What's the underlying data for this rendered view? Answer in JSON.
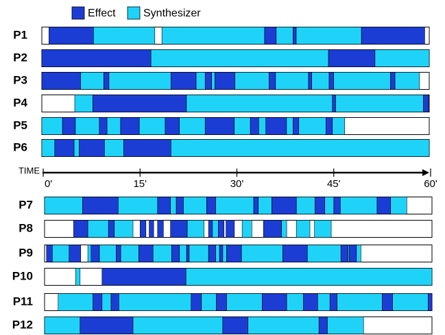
{
  "chart_data": {
    "type": "timeline",
    "series": [
      {
        "name": "Effect",
        "color": "#1c3dd4"
      },
      {
        "name": "Synthesizer",
        "color": "#1fd3f8"
      }
    ],
    "x_label": "TIME",
    "xlim": [
      0,
      60
    ],
    "xticks": [
      {
        "value": 0,
        "label": "0'"
      },
      {
        "value": 15,
        "label": "15'"
      },
      {
        "value": 30,
        "label": "30'"
      },
      {
        "value": 45,
        "label": "45'"
      },
      {
        "value": 60,
        "label": "60'"
      }
    ],
    "rows": [
      {
        "label": "P1",
        "segments": [
          [
            1.1,
            8.0,
            0
          ],
          [
            8.0,
            17.5,
            1
          ],
          [
            18.6,
            34.5,
            1
          ],
          [
            34.5,
            36.3,
            0
          ],
          [
            36.3,
            38.9,
            1
          ],
          [
            38.9,
            39.4,
            0
          ],
          [
            39.4,
            49.5,
            1
          ],
          [
            49.5,
            59.3,
            0
          ]
        ]
      },
      {
        "label": "P2",
        "segments": [
          [
            0,
            16.9,
            0
          ],
          [
            16.9,
            44.4,
            1
          ],
          [
            44.4,
            51.6,
            0
          ],
          [
            51.6,
            60,
            1
          ]
        ]
      },
      {
        "label": "P3",
        "segments": [
          [
            0,
            6.0,
            0
          ],
          [
            6.0,
            9.6,
            1
          ],
          [
            9.6,
            10.4,
            0
          ],
          [
            10.4,
            20.0,
            1
          ],
          [
            20.0,
            23.9,
            0
          ],
          [
            23.9,
            25.3,
            1
          ],
          [
            25.3,
            26.3,
            0
          ],
          [
            26.3,
            26.8,
            1
          ],
          [
            26.8,
            29.9,
            0
          ],
          [
            29.9,
            35.2,
            1
          ],
          [
            35.2,
            36.2,
            0
          ],
          [
            36.2,
            41.3,
            1
          ],
          [
            41.3,
            41.8,
            0
          ],
          [
            41.8,
            44.5,
            1
          ],
          [
            44.5,
            45.2,
            0
          ],
          [
            45.2,
            54.0,
            1
          ],
          [
            54.0,
            54.7,
            0
          ],
          [
            54.7,
            58.5,
            1
          ]
        ]
      },
      {
        "label": "P4",
        "segments": [
          [
            5.1,
            7.9,
            1
          ],
          [
            7.9,
            22.4,
            0
          ],
          [
            22.4,
            45.0,
            1
          ],
          [
            45.0,
            45.5,
            0
          ],
          [
            45.5,
            59.1,
            1
          ],
          [
            59.1,
            59.9,
            0
          ]
        ]
      },
      {
        "label": "P5",
        "segments": [
          [
            0,
            3.2,
            1
          ],
          [
            3.2,
            5.2,
            0
          ],
          [
            5.2,
            8.9,
            1
          ],
          [
            8.9,
            10.1,
            0
          ],
          [
            10.1,
            12.2,
            1
          ],
          [
            12.2,
            15.1,
            0
          ],
          [
            15.1,
            19.1,
            1
          ],
          [
            19.1,
            21.3,
            0
          ],
          [
            21.3,
            25.3,
            1
          ],
          [
            25.3,
            29.8,
            0
          ],
          [
            29.8,
            32.3,
            1
          ],
          [
            32.3,
            33.6,
            0
          ],
          [
            33.6,
            34.7,
            1
          ],
          [
            34.7,
            37.9,
            0
          ],
          [
            37.9,
            38.9,
            1
          ],
          [
            38.9,
            39.8,
            0
          ],
          [
            39.8,
            44.0,
            1
          ],
          [
            44.0,
            45.0,
            0
          ],
          [
            45.0,
            46.9,
            1
          ]
        ]
      },
      {
        "label": "P6",
        "segments": [
          [
            0,
            2.0,
            1
          ],
          [
            2.0,
            5.0,
            0
          ],
          [
            5.0,
            5.8,
            1
          ],
          [
            5.8,
            9.7,
            0
          ],
          [
            9.7,
            12.7,
            1
          ],
          [
            12.7,
            20.0,
            0
          ],
          [
            20.0,
            60,
            1
          ]
        ]
      },
      {
        "label": "P7",
        "segments": [
          [
            0,
            5.9,
            1
          ],
          [
            5.9,
            11.4,
            0
          ],
          [
            11.4,
            17.5,
            1
          ],
          [
            17.5,
            19.5,
            0
          ],
          [
            19.5,
            20.4,
            1
          ],
          [
            20.4,
            21.5,
            0
          ],
          [
            21.5,
            25.1,
            1
          ],
          [
            25.1,
            26.5,
            0
          ],
          [
            26.5,
            32.4,
            1
          ],
          [
            32.4,
            33.1,
            0
          ],
          [
            33.1,
            35.2,
            1
          ],
          [
            35.2,
            39.0,
            0
          ],
          [
            39.0,
            41.9,
            1
          ],
          [
            41.9,
            43.4,
            0
          ],
          [
            43.4,
            44.8,
            1
          ],
          [
            44.8,
            45.8,
            0
          ],
          [
            45.8,
            51.5,
            1
          ],
          [
            51.5,
            53.6,
            0
          ],
          [
            53.6,
            56.1,
            1
          ]
        ]
      },
      {
        "label": "P8",
        "segments": [
          [
            4.5,
            6.7,
            0
          ],
          [
            6.7,
            9.9,
            1
          ],
          [
            9.9,
            10.8,
            0
          ],
          [
            10.8,
            13.7,
            1
          ],
          [
            14.8,
            15.7,
            0
          ],
          [
            16.2,
            16.9,
            0
          ],
          [
            17.5,
            18.4,
            0
          ],
          [
            19.5,
            22.1,
            0
          ],
          [
            22.1,
            24.7,
            1
          ],
          [
            25.4,
            26.0,
            0
          ],
          [
            26.0,
            26.9,
            1
          ],
          [
            26.9,
            27.8,
            0
          ],
          [
            28.1,
            29.4,
            0
          ],
          [
            30.6,
            32.1,
            1
          ],
          [
            33.9,
            36.7,
            0
          ],
          [
            36.7,
            37.5,
            1
          ],
          [
            39.0,
            41.1,
            1
          ],
          [
            41.8,
            44.4,
            1
          ]
        ]
      },
      {
        "label": "P9",
        "segments": [
          [
            0.3,
            1.2,
            0
          ],
          [
            1.2,
            3.8,
            1
          ],
          [
            3.8,
            5.6,
            0
          ],
          [
            6.7,
            7.2,
            1
          ],
          [
            7.2,
            8.5,
            0
          ],
          [
            8.5,
            11.1,
            1
          ],
          [
            11.1,
            11.8,
            0
          ],
          [
            11.8,
            14.6,
            1
          ],
          [
            14.6,
            16.8,
            0
          ],
          [
            16.8,
            19.7,
            1
          ],
          [
            19.7,
            20.9,
            0
          ],
          [
            20.9,
            22.0,
            1
          ],
          [
            22.0,
            22.4,
            0
          ],
          [
            22.4,
            25.4,
            1
          ],
          [
            25.4,
            26.5,
            0
          ],
          [
            26.5,
            27.1,
            1
          ],
          [
            27.1,
            27.6,
            0
          ],
          [
            27.6,
            28.2,
            1
          ],
          [
            28.2,
            30.5,
            0
          ],
          [
            30.5,
            36.9,
            1
          ],
          [
            36.9,
            40.7,
            0
          ],
          [
            40.7,
            45.9,
            1
          ],
          [
            45.9,
            47.0,
            0
          ],
          [
            47.0,
            47.2,
            1
          ],
          [
            47.2,
            48.3,
            0
          ],
          [
            48.3,
            49.0,
            1
          ]
        ]
      },
      {
        "label": "P10",
        "segments": [
          [
            4.8,
            5.5,
            1
          ],
          [
            8.9,
            21.9,
            0
          ],
          [
            21.9,
            60,
            1
          ]
        ]
      },
      {
        "label": "P11",
        "segments": [
          [
            2.1,
            7.5,
            1
          ],
          [
            7.5,
            8.9,
            0
          ],
          [
            8.9,
            10.3,
            1
          ],
          [
            10.3,
            11.5,
            0
          ],
          [
            11.5,
            22.7,
            1
          ],
          [
            22.7,
            24.3,
            0
          ],
          [
            24.3,
            26.6,
            1
          ],
          [
            26.6,
            28.2,
            0
          ],
          [
            28.2,
            33.7,
            1
          ],
          [
            33.7,
            37.5,
            0
          ],
          [
            37.5,
            40.1,
            1
          ],
          [
            40.1,
            42.3,
            0
          ],
          [
            42.3,
            44.2,
            1
          ],
          [
            44.2,
            45.3,
            0
          ],
          [
            45.3,
            52.3,
            1
          ],
          [
            52.3,
            53.9,
            0
          ],
          [
            53.9,
            59.4,
            1
          ],
          [
            59.4,
            60,
            0
          ]
        ]
      },
      {
        "label": "P12",
        "segments": [
          [
            0,
            5.5,
            1
          ],
          [
            5.5,
            13.7,
            0
          ],
          [
            13.7,
            27.6,
            1
          ],
          [
            27.6,
            31.5,
            0
          ],
          [
            31.5,
            42.5,
            1
          ],
          [
            42.5,
            43.8,
            0
          ],
          [
            43.8,
            49.4,
            1
          ]
        ]
      }
    ]
  }
}
